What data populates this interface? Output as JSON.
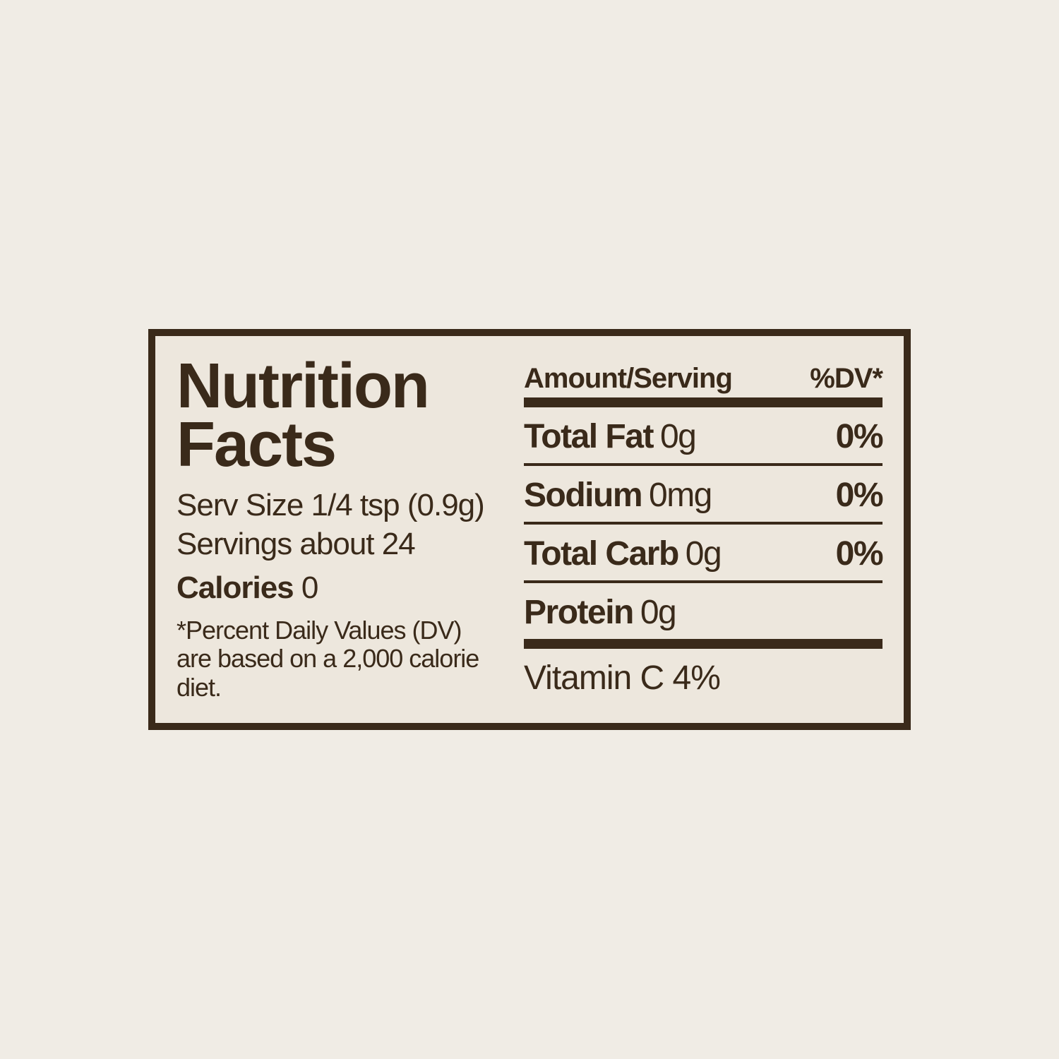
{
  "title_line1": "Nutrition",
  "title_line2": "Facts",
  "serving_size_label": "Serv Size",
  "serving_size_value": "1/4 tsp (0.9g)",
  "servings_label": "Servings about",
  "servings_value": "24",
  "calories_label": "Calories",
  "calories_value": "0",
  "footnote": "*Percent Daily Values (DV) are based on a 2,000 calorie diet.",
  "header_amount": "Amount/Serving",
  "header_dv": "%DV*",
  "rows": {
    "fat": {
      "name": "Total Fat",
      "amount": "0g",
      "dv": "0%"
    },
    "sodium": {
      "name": "Sodium",
      "amount": "0mg",
      "dv": "0%"
    },
    "carb": {
      "name": "Total Carb",
      "amount": "0g",
      "dv": "0%"
    },
    "protein": {
      "name": "Protein",
      "amount": "0g",
      "dv": ""
    }
  },
  "vitamin_line": "Vitamin C 4%",
  "colors": {
    "ink": "#3a2a1a",
    "paper": "#ede7dd",
    "page_bg": "#f0ece5"
  }
}
